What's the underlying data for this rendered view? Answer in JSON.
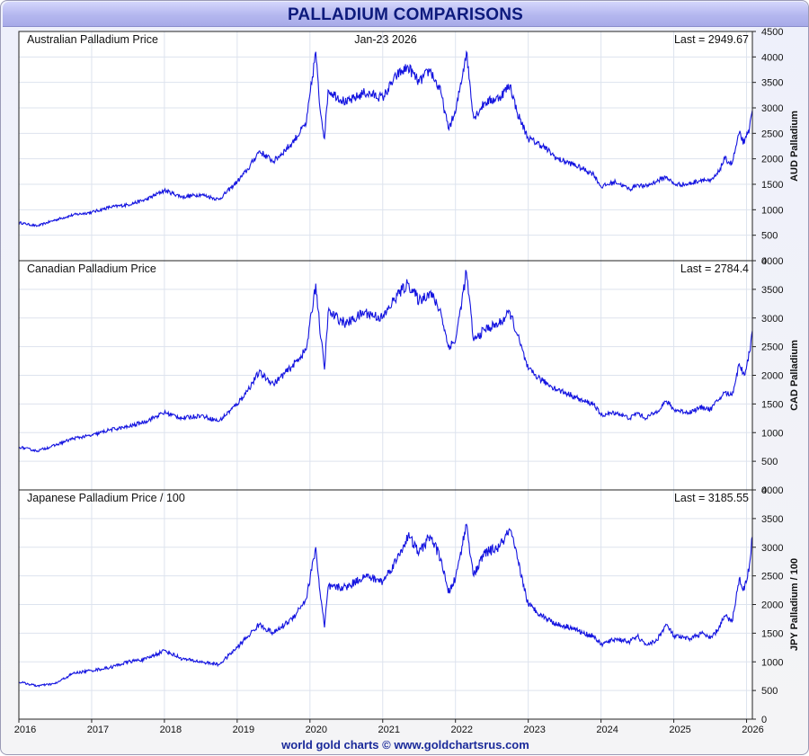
{
  "header": {
    "title": "PALLADIUM COMPARISONS"
  },
  "footer": {
    "credit": "world gold charts © www.goldchartsrus.com"
  },
  "colors": {
    "line": "#1414e0",
    "title_text": "#0d1a7c",
    "title_bar": "#b4b7ef",
    "grid": "#dde3ee"
  },
  "chart_data": [
    {
      "type": "line",
      "title": "Australian Palladium Price",
      "date_label": "Jan-23 2026",
      "last_label": "Last = 2949.67",
      "ylabel": "AUD Palladium",
      "ylim": [
        0,
        4500
      ],
      "yticks": [
        0,
        500,
        1000,
        1500,
        2000,
        2500,
        3000,
        3500,
        4000,
        4500
      ],
      "xlim": [
        2016.0,
        2026.08
      ],
      "grid": true,
      "series": [
        {
          "x": [
            2016.0,
            2016.25,
            2016.5,
            2016.75,
            2017.0,
            2017.25,
            2017.5,
            2017.75,
            2018.0,
            2018.25,
            2018.5,
            2018.75,
            2019.0,
            2019.15,
            2019.3,
            2019.5,
            2019.75,
            2019.95,
            2020.08,
            2020.13,
            2020.2,
            2020.25,
            2020.5,
            2020.75,
            2021.0,
            2021.2,
            2021.35,
            2021.5,
            2021.65,
            2021.8,
            2021.9,
            2022.0,
            2022.15,
            2022.25,
            2022.4,
            2022.6,
            2022.75,
            2022.85,
            2023.0,
            2023.2,
            2023.4,
            2023.6,
            2023.75,
            2023.9,
            2024.0,
            2024.2,
            2024.4,
            2024.5,
            2024.6,
            2024.75,
            2024.9,
            2025.0,
            2025.2,
            2025.4,
            2025.5,
            2025.6,
            2025.7,
            2025.8,
            2025.9,
            2025.97,
            2026.04,
            2026.08
          ],
          "y": [
            750,
            680,
            800,
            900,
            950,
            1050,
            1100,
            1200,
            1380,
            1250,
            1300,
            1200,
            1550,
            1800,
            2150,
            1950,
            2300,
            2700,
            4100,
            3100,
            2400,
            3350,
            3100,
            3300,
            3200,
            3650,
            3800,
            3500,
            3750,
            3300,
            2600,
            2900,
            4100,
            2800,
            3100,
            3200,
            3450,
            2900,
            2400,
            2250,
            2000,
            1900,
            1800,
            1700,
            1450,
            1550,
            1400,
            1500,
            1450,
            1550,
            1650,
            1500,
            1500,
            1600,
            1550,
            1700,
            2000,
            1900,
            2500,
            2300,
            2600,
            2950
          ]
        }
      ]
    },
    {
      "type": "line",
      "title": "Canadian Palladium Price",
      "last_label": "Last = 2784.4",
      "ylabel": "CAD Palladium",
      "ylim": [
        0,
        4000
      ],
      "yticks": [
        0,
        500,
        1000,
        1500,
        2000,
        2500,
        3000,
        3500,
        4000
      ],
      "xlim": [
        2016.0,
        2026.08
      ],
      "grid": true,
      "series": [
        {
          "x": [
            2016.0,
            2016.25,
            2016.5,
            2016.75,
            2017.0,
            2017.25,
            2017.5,
            2017.75,
            2018.0,
            2018.25,
            2018.5,
            2018.75,
            2019.0,
            2019.15,
            2019.3,
            2019.5,
            2019.75,
            2019.95,
            2020.08,
            2020.13,
            2020.2,
            2020.25,
            2020.5,
            2020.75,
            2021.0,
            2021.2,
            2021.35,
            2021.5,
            2021.65,
            2021.8,
            2021.9,
            2022.0,
            2022.15,
            2022.25,
            2022.4,
            2022.6,
            2022.75,
            2022.85,
            2023.0,
            2023.2,
            2023.4,
            2023.6,
            2023.75,
            2023.9,
            2024.0,
            2024.2,
            2024.4,
            2024.5,
            2024.6,
            2024.75,
            2024.9,
            2025.0,
            2025.2,
            2025.4,
            2025.5,
            2025.6,
            2025.7,
            2025.8,
            2025.9,
            2025.97,
            2026.04,
            2026.08
          ],
          "y": [
            750,
            680,
            780,
            900,
            950,
            1050,
            1100,
            1200,
            1350,
            1250,
            1300,
            1200,
            1500,
            1750,
            2050,
            1850,
            2150,
            2450,
            3600,
            2900,
            2100,
            3100,
            2900,
            3100,
            3000,
            3400,
            3600,
            3300,
            3450,
            3100,
            2500,
            2600,
            3800,
            2600,
            2800,
            2900,
            3100,
            2700,
            2100,
            1900,
            1750,
            1650,
            1550,
            1500,
            1300,
            1350,
            1250,
            1350,
            1250,
            1350,
            1550,
            1400,
            1350,
            1450,
            1400,
            1550,
            1700,
            1650,
            2200,
            2000,
            2400,
            2780
          ]
        }
      ]
    },
    {
      "type": "line",
      "title": "Japanese Palladium Price / 100",
      "last_label": "Last = 3185.55",
      "ylabel": "JPY Palladium / 100",
      "ylim": [
        0,
        4000
      ],
      "yticks": [
        0,
        500,
        1000,
        1500,
        2000,
        2500,
        3000,
        3500,
        4000
      ],
      "xlim": [
        2016.0,
        2026.08
      ],
      "xticks": [
        "2016",
        "2017",
        "2018",
        "2019",
        "2020",
        "2021",
        "2022",
        "2023",
        "2024",
        "2025",
        "2026"
      ],
      "grid": true,
      "series": [
        {
          "x": [
            2016.0,
            2016.25,
            2016.5,
            2016.75,
            2017.0,
            2017.25,
            2017.5,
            2017.75,
            2018.0,
            2018.25,
            2018.5,
            2018.75,
            2019.0,
            2019.15,
            2019.3,
            2019.5,
            2019.75,
            2019.95,
            2020.08,
            2020.13,
            2020.2,
            2020.25,
            2020.5,
            2020.75,
            2021.0,
            2021.2,
            2021.35,
            2021.5,
            2021.65,
            2021.8,
            2021.9,
            2022.0,
            2022.15,
            2022.25,
            2022.4,
            2022.6,
            2022.75,
            2022.85,
            2023.0,
            2023.2,
            2023.4,
            2023.6,
            2023.75,
            2023.9,
            2024.0,
            2024.2,
            2024.4,
            2024.5,
            2024.6,
            2024.75,
            2024.9,
            2025.0,
            2025.2,
            2025.4,
            2025.5,
            2025.6,
            2025.7,
            2025.8,
            2025.9,
            2025.97,
            2026.04,
            2026.08
          ],
          "y": [
            650,
            580,
            620,
            800,
            850,
            900,
            1000,
            1050,
            1200,
            1050,
            1000,
            950,
            1250,
            1450,
            1650,
            1500,
            1750,
            2100,
            3000,
            2300,
            1600,
            2300,
            2300,
            2500,
            2400,
            2800,
            3200,
            2900,
            3200,
            2800,
            2200,
            2450,
            3400,
            2500,
            2900,
            3000,
            3300,
            2800,
            2000,
            1800,
            1650,
            1600,
            1500,
            1450,
            1300,
            1400,
            1350,
            1450,
            1300,
            1350,
            1650,
            1450,
            1400,
            1500,
            1400,
            1550,
            1800,
            1700,
            2450,
            2250,
            2700,
            3185
          ]
        }
      ]
    }
  ]
}
